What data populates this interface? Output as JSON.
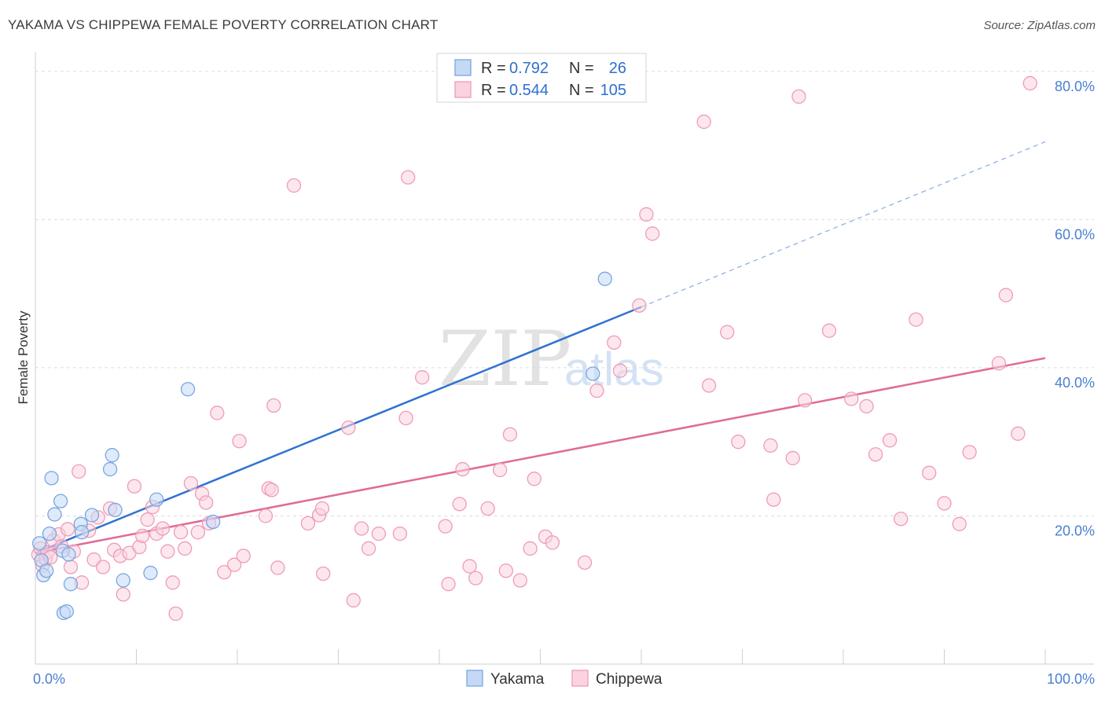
{
  "title": "YAKAMA VS CHIPPEWA FEMALE POVERTY CORRELATION CHART",
  "source": "Source: ZipAtlas.com",
  "watermark": {
    "zip": "ZIP",
    "atlas": "atlas"
  },
  "colors": {
    "yakama_fill": "#c5d9f5",
    "yakama_stroke": "#7aa6e0",
    "yakama_line": "#2f72d0",
    "chippewa_fill": "#fad3df",
    "chippewa_stroke": "#ee9cb7",
    "chippewa_line": "#e06a98",
    "grid": "#dcdcdc",
    "tick_text": "#4a7fd0"
  },
  "legend": {
    "rows": [
      {
        "r_label": "R =",
        "r_value": "0.792",
        "n_label": "N =",
        "n_value": "26"
      },
      {
        "r_label": "R =",
        "r_value": "0.544",
        "n_label": "N =",
        "n_value": "105"
      }
    ]
  },
  "chart_data": {
    "type": "scatter",
    "title": "YAKAMA VS CHIPPEWA FEMALE POVERTY CORRELATION CHART",
    "xlabel": "",
    "ylabel": "Female Poverty",
    "xlim": [
      0,
      100
    ],
    "ylim": [
      0,
      82
    ],
    "x_tick_labels": [
      "0.0%",
      "100.0%"
    ],
    "y_ticks": [
      20,
      40,
      60,
      80
    ],
    "y_tick_labels": [
      "20.0%",
      "40.0%",
      "60.0%",
      "80.0%"
    ],
    "grid": true,
    "legend_position": "top-center",
    "series": [
      {
        "name": "Yakama",
        "r": 0.792,
        "n": 26,
        "trend": {
          "x0": 0,
          "y0": 15.0,
          "x1": 60,
          "y1": 48.2,
          "dash_x1": 100,
          "dash_y1": 70.5
        },
        "points": [
          [
            0.4,
            16.3
          ],
          [
            0.6,
            14.0
          ],
          [
            0.8,
            12.0
          ],
          [
            1.1,
            12.6
          ],
          [
            1.4,
            17.6
          ],
          [
            1.6,
            25.1
          ],
          [
            1.9,
            20.2
          ],
          [
            2.5,
            22.0
          ],
          [
            2.7,
            15.3
          ],
          [
            2.8,
            6.9
          ],
          [
            3.1,
            7.1
          ],
          [
            3.3,
            14.8
          ],
          [
            3.5,
            10.8
          ],
          [
            4.5,
            18.9
          ],
          [
            4.6,
            17.8
          ],
          [
            5.6,
            20.1
          ],
          [
            7.4,
            26.3
          ],
          [
            7.6,
            28.2
          ],
          [
            7.9,
            20.8
          ],
          [
            8.7,
            11.3
          ],
          [
            11.4,
            12.3
          ],
          [
            12.0,
            22.2
          ],
          [
            15.1,
            37.1
          ],
          [
            17.6,
            19.2
          ],
          [
            55.2,
            39.2
          ],
          [
            56.4,
            52.0
          ]
        ]
      },
      {
        "name": "Chippewa",
        "r": 0.544,
        "n": 105,
        "trend": {
          "x0": 0,
          "y0": 15.0,
          "x1": 100,
          "y1": 41.3
        },
        "points": [
          [
            0.3,
            14.8
          ],
          [
            0.5,
            15.6
          ],
          [
            0.7,
            13.3
          ],
          [
            1.0,
            14.2
          ],
          [
            1.2,
            15.1
          ],
          [
            1.5,
            14.4
          ],
          [
            1.8,
            16.7
          ],
          [
            2.3,
            17.5
          ],
          [
            2.6,
            15.9
          ],
          [
            3.2,
            18.2
          ],
          [
            3.5,
            13.1
          ],
          [
            3.8,
            15.2
          ],
          [
            4.3,
            26.0
          ],
          [
            4.6,
            11.0
          ],
          [
            5.3,
            18.0
          ],
          [
            5.8,
            14.1
          ],
          [
            6.2,
            19.8
          ],
          [
            6.7,
            13.1
          ],
          [
            7.4,
            21.0
          ],
          [
            7.8,
            15.4
          ],
          [
            8.4,
            14.6
          ],
          [
            8.7,
            9.4
          ],
          [
            9.3,
            15.0
          ],
          [
            9.8,
            24.0
          ],
          [
            10.3,
            15.8
          ],
          [
            10.6,
            17.3
          ],
          [
            11.1,
            19.5
          ],
          [
            11.6,
            21.2
          ],
          [
            12.0,
            17.6
          ],
          [
            12.6,
            18.3
          ],
          [
            13.1,
            15.2
          ],
          [
            13.6,
            11.0
          ],
          [
            13.9,
            6.8
          ],
          [
            14.4,
            17.8
          ],
          [
            14.8,
            15.6
          ],
          [
            15.4,
            24.4
          ],
          [
            16.1,
            17.8
          ],
          [
            16.5,
            23.0
          ],
          [
            16.9,
            21.8
          ],
          [
            17.2,
            19.0
          ],
          [
            18.0,
            33.9
          ],
          [
            18.7,
            12.4
          ],
          [
            19.7,
            13.4
          ],
          [
            20.2,
            30.1
          ],
          [
            20.6,
            14.6
          ],
          [
            22.8,
            20.0
          ],
          [
            23.1,
            23.7
          ],
          [
            23.4,
            23.5
          ],
          [
            23.6,
            34.9
          ],
          [
            24.0,
            13.0
          ],
          [
            25.6,
            64.6
          ],
          [
            27.0,
            19.0
          ],
          [
            28.1,
            20.1
          ],
          [
            28.4,
            21.0
          ],
          [
            28.5,
            12.2
          ],
          [
            31.0,
            31.9
          ],
          [
            31.5,
            8.6
          ],
          [
            32.3,
            18.3
          ],
          [
            33.0,
            15.6
          ],
          [
            34.0,
            17.6
          ],
          [
            36.1,
            17.6
          ],
          [
            36.7,
            33.2
          ],
          [
            36.9,
            65.7
          ],
          [
            38.3,
            38.7
          ],
          [
            40.6,
            18.6
          ],
          [
            40.9,
            10.8
          ],
          [
            42.0,
            21.6
          ],
          [
            42.3,
            26.3
          ],
          [
            43.0,
            13.2
          ],
          [
            43.6,
            11.6
          ],
          [
            44.8,
            21.0
          ],
          [
            46.0,
            26.2
          ],
          [
            46.6,
            12.6
          ],
          [
            47.0,
            31.0
          ],
          [
            48.0,
            11.3
          ],
          [
            49.0,
            15.6
          ],
          [
            49.4,
            25.0
          ],
          [
            50.5,
            17.2
          ],
          [
            51.2,
            16.4
          ],
          [
            54.4,
            13.7
          ],
          [
            55.6,
            36.9
          ],
          [
            57.3,
            43.4
          ],
          [
            57.9,
            39.6
          ],
          [
            59.8,
            48.4
          ],
          [
            60.5,
            60.7
          ],
          [
            61.1,
            58.1
          ],
          [
            66.2,
            73.2
          ],
          [
            66.7,
            37.6
          ],
          [
            68.5,
            44.8
          ],
          [
            69.6,
            30.0
          ],
          [
            72.8,
            29.5
          ],
          [
            73.1,
            22.2
          ],
          [
            75.0,
            27.8
          ],
          [
            75.6,
            76.6
          ],
          [
            76.2,
            35.6
          ],
          [
            78.6,
            45.0
          ],
          [
            80.8,
            35.8
          ],
          [
            82.3,
            34.8
          ],
          [
            83.2,
            28.3
          ],
          [
            84.6,
            30.2
          ],
          [
            85.7,
            19.6
          ],
          [
            87.2,
            46.5
          ],
          [
            88.5,
            25.8
          ],
          [
            90.0,
            21.7
          ],
          [
            91.5,
            18.9
          ],
          [
            92.5,
            28.6
          ],
          [
            95.4,
            40.6
          ],
          [
            96.1,
            49.8
          ],
          [
            97.3,
            31.1
          ],
          [
            98.5,
            78.4
          ]
        ]
      }
    ]
  }
}
